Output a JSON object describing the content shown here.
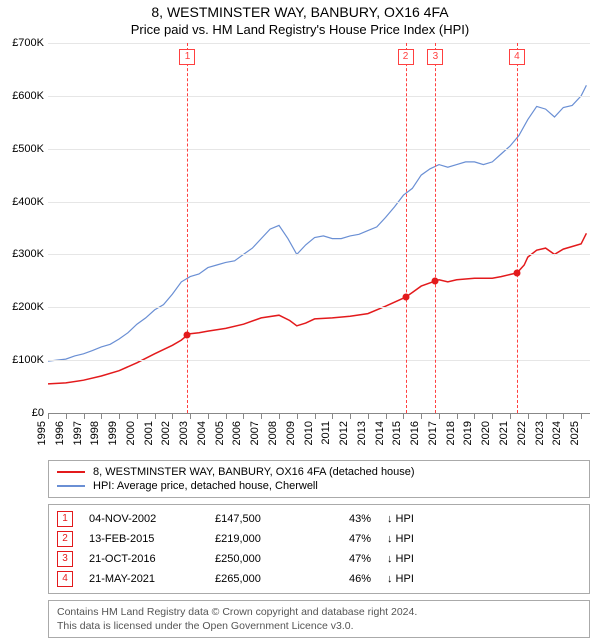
{
  "title": "8, WESTMINSTER WAY, BANBURY, OX16 4FA",
  "subtitle": "Price paid vs. HM Land Registry's House Price Index (HPI)",
  "chart": {
    "type": "line",
    "background_color": "#ffffff",
    "grid_color": "#e6e6e6",
    "axis_color": "#888888",
    "label_fontsize": 11,
    "event_line_color": "#ff4040",
    "x": {
      "min": 1995,
      "max": 2025.5,
      "ticks": [
        1995,
        1996,
        1997,
        1998,
        1999,
        2000,
        2001,
        2002,
        2003,
        2004,
        2005,
        2006,
        2007,
        2008,
        2009,
        2010,
        2011,
        2012,
        2013,
        2014,
        2015,
        2016,
        2017,
        2018,
        2019,
        2020,
        2021,
        2022,
        2023,
        2024,
        2025
      ]
    },
    "y": {
      "min": 0,
      "max": 700000,
      "ticks": [
        0,
        100000,
        200000,
        300000,
        400000,
        500000,
        600000,
        700000
      ],
      "tick_labels": [
        "£0",
        "£100K",
        "£200K",
        "£300K",
        "£400K",
        "£500K",
        "£600K",
        "£700K"
      ]
    },
    "series": {
      "property": {
        "color": "#e31a1c",
        "line_width": 1.5,
        "marker_color": "#e31a1c",
        "marker_size": 7,
        "points": [
          [
            1995.0,
            55000
          ],
          [
            1996.0,
            57000
          ],
          [
            1997.0,
            62000
          ],
          [
            1998.0,
            70000
          ],
          [
            1999.0,
            80000
          ],
          [
            2000.0,
            95000
          ],
          [
            2001.0,
            112000
          ],
          [
            2001.5,
            120000
          ],
          [
            2002.0,
            128000
          ],
          [
            2002.5,
            138000
          ],
          [
            2002.85,
            147500
          ],
          [
            2003.0,
            150000
          ],
          [
            2003.5,
            152000
          ],
          [
            2004.0,
            155000
          ],
          [
            2005.0,
            160000
          ],
          [
            2006.0,
            168000
          ],
          [
            2007.0,
            180000
          ],
          [
            2008.0,
            185000
          ],
          [
            2008.6,
            175000
          ],
          [
            2009.0,
            165000
          ],
          [
            2009.5,
            170000
          ],
          [
            2010.0,
            178000
          ],
          [
            2011.0,
            180000
          ],
          [
            2012.0,
            183000
          ],
          [
            2013.0,
            188000
          ],
          [
            2014.0,
            202000
          ],
          [
            2015.12,
            219000
          ],
          [
            2015.5,
            228000
          ],
          [
            2016.0,
            240000
          ],
          [
            2016.8,
            250000
          ],
          [
            2017.0,
            252000
          ],
          [
            2017.5,
            248000
          ],
          [
            2018.0,
            252000
          ],
          [
            2019.0,
            255000
          ],
          [
            2020.0,
            255000
          ],
          [
            2020.5,
            258000
          ],
          [
            2021.0,
            262000
          ],
          [
            2021.39,
            265000
          ],
          [
            2021.8,
            280000
          ],
          [
            2022.0,
            295000
          ],
          [
            2022.5,
            308000
          ],
          [
            2023.0,
            312000
          ],
          [
            2023.5,
            300000
          ],
          [
            2024.0,
            310000
          ],
          [
            2024.5,
            315000
          ],
          [
            2025.0,
            320000
          ],
          [
            2025.3,
            340000
          ]
        ]
      },
      "hpi": {
        "color": "#6a8fd4",
        "line_width": 1.2,
        "points": [
          [
            1995.0,
            98000
          ],
          [
            1995.5,
            100000
          ],
          [
            1996.0,
            102000
          ],
          [
            1996.5,
            108000
          ],
          [
            1997.0,
            112000
          ],
          [
            1997.5,
            118000
          ],
          [
            1998.0,
            125000
          ],
          [
            1998.5,
            130000
          ],
          [
            1999.0,
            140000
          ],
          [
            1999.5,
            152000
          ],
          [
            2000.0,
            168000
          ],
          [
            2000.5,
            180000
          ],
          [
            2001.0,
            195000
          ],
          [
            2001.5,
            205000
          ],
          [
            2002.0,
            225000
          ],
          [
            2002.5,
            248000
          ],
          [
            2003.0,
            258000
          ],
          [
            2003.5,
            263000
          ],
          [
            2004.0,
            275000
          ],
          [
            2004.5,
            280000
          ],
          [
            2005.0,
            285000
          ],
          [
            2005.5,
            288000
          ],
          [
            2006.0,
            300000
          ],
          [
            2006.5,
            312000
          ],
          [
            2007.0,
            330000
          ],
          [
            2007.5,
            348000
          ],
          [
            2008.0,
            355000
          ],
          [
            2008.5,
            330000
          ],
          [
            2009.0,
            300000
          ],
          [
            2009.5,
            318000
          ],
          [
            2010.0,
            332000
          ],
          [
            2010.5,
            335000
          ],
          [
            2011.0,
            330000
          ],
          [
            2011.5,
            330000
          ],
          [
            2012.0,
            335000
          ],
          [
            2012.5,
            338000
          ],
          [
            2013.0,
            345000
          ],
          [
            2013.5,
            352000
          ],
          [
            2014.0,
            370000
          ],
          [
            2014.5,
            390000
          ],
          [
            2015.0,
            412000
          ],
          [
            2015.5,
            425000
          ],
          [
            2016.0,
            450000
          ],
          [
            2016.5,
            462000
          ],
          [
            2017.0,
            470000
          ],
          [
            2017.5,
            465000
          ],
          [
            2018.0,
            470000
          ],
          [
            2018.5,
            475000
          ],
          [
            2019.0,
            475000
          ],
          [
            2019.5,
            470000
          ],
          [
            2020.0,
            475000
          ],
          [
            2020.5,
            490000
          ],
          [
            2021.0,
            505000
          ],
          [
            2021.5,
            525000
          ],
          [
            2022.0,
            555000
          ],
          [
            2022.5,
            580000
          ],
          [
            2023.0,
            575000
          ],
          [
            2023.5,
            560000
          ],
          [
            2024.0,
            578000
          ],
          [
            2024.5,
            582000
          ],
          [
            2025.0,
            600000
          ],
          [
            2025.3,
            620000
          ]
        ]
      }
    },
    "events": [
      {
        "n": "1",
        "x": 2002.85,
        "price": 147500
      },
      {
        "n": "2",
        "x": 2015.12,
        "price": 219000
      },
      {
        "n": "3",
        "x": 2016.8,
        "price": 250000
      },
      {
        "n": "4",
        "x": 2021.39,
        "price": 265000
      }
    ]
  },
  "legend": [
    {
      "color": "#e31a1c",
      "label": "8, WESTMINSTER WAY, BANBURY, OX16 4FA (detached house)"
    },
    {
      "color": "#6a8fd4",
      "label": "HPI: Average price, detached house, Cherwell"
    }
  ],
  "sales": [
    {
      "n": "1",
      "date": "04-NOV-2002",
      "price": "£147,500",
      "pct": "43%",
      "rel": "↓ HPI"
    },
    {
      "n": "2",
      "date": "13-FEB-2015",
      "price": "£219,000",
      "pct": "47%",
      "rel": "↓ HPI"
    },
    {
      "n": "3",
      "date": "21-OCT-2016",
      "price": "£250,000",
      "pct": "47%",
      "rel": "↓ HPI"
    },
    {
      "n": "4",
      "date": "21-MAY-2021",
      "price": "£265,000",
      "pct": "46%",
      "rel": "↓ HPI"
    }
  ],
  "sales_marker_color": "#e31a1c",
  "footer_line1": "Contains HM Land Registry data © Crown copyright and database right 2024.",
  "footer_line2": "This data is licensed under the Open Government Licence v3.0."
}
